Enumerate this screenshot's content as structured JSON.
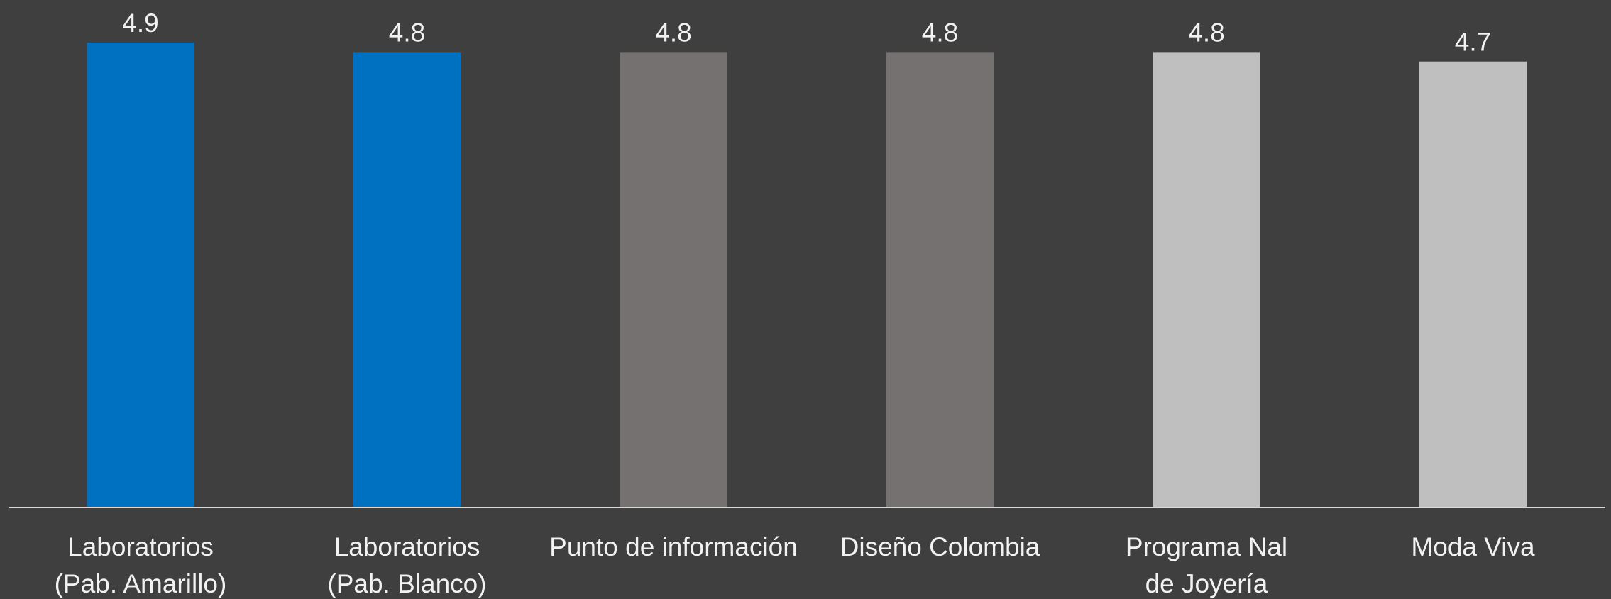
{
  "chart_data": {
    "type": "bar",
    "title": "",
    "xlabel": "",
    "ylabel": "",
    "categories": [
      [
        "Laboratorios",
        "(Pab. Amarillo)"
      ],
      [
        "Laboratorios",
        "(Pab. Blanco)"
      ],
      [
        "Punto de información"
      ],
      [
        "Diseño Colombia"
      ],
      [
        "Programa Nal",
        "de Joyería"
      ],
      [
        "Moda Viva"
      ]
    ],
    "values": [
      4.9,
      4.8,
      4.8,
      4.8,
      4.8,
      4.7
    ],
    "value_labels": [
      "4.9",
      "4.8",
      "4.8",
      "4.8",
      "4.8",
      "4.7"
    ],
    "bar_colors": [
      "#0070c0",
      "#0070c0",
      "#767171",
      "#767171",
      "#bfbfbf",
      "#bfbfbf"
    ],
    "ylim": [
      0,
      4.9
    ],
    "grid": false,
    "legend": "none",
    "background": "#3f3f3f",
    "axis_color": "#d9d9d9",
    "text_color": "#f2f2f2"
  }
}
